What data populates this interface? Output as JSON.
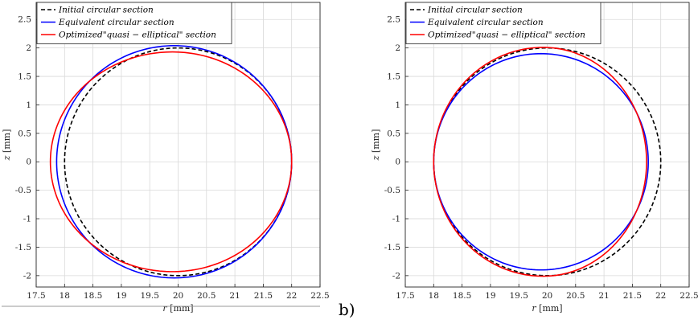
{
  "panel_labels": [
    "",
    "b)"
  ],
  "chart_data": [
    {
      "type": "line",
      "title": "",
      "xlabel": "r [mm]",
      "xlabel_var": "r",
      "xlabel_unit": "[mm]",
      "ylabel": "z [mm]",
      "ylabel_var": "z",
      "ylabel_unit": "[mm]",
      "xlim": [
        17.5,
        22.5
      ],
      "ylim": [
        -2.2,
        2.8
      ],
      "xticks": [
        17.5,
        18,
        18.5,
        19,
        19.5,
        20,
        20.5,
        21,
        21.5,
        22,
        22.5
      ],
      "yticks": [
        -2,
        -1.5,
        -1,
        -0.5,
        0,
        0.5,
        1,
        1.5,
        2,
        2.5
      ],
      "grid": true,
      "legend_position": "top-left",
      "series": [
        {
          "name": "Initial circular section",
          "color": "#000000",
          "dash": "dashed",
          "shape": {
            "center": [
              20,
              0
            ],
            "r_min": 18,
            "r_max": 22,
            "z_max": 2.0,
            "z_min": -2.0
          }
        },
        {
          "name": "Equivalent circular section",
          "color": "#0000ff",
          "dash": "solid",
          "shape": {
            "center": [
              19.93,
              0
            ],
            "r_min": 17.86,
            "r_max": 22,
            "z_max": 2.04,
            "z_min": -2.04
          }
        },
        {
          "name": "Optimized\"quasi − elliptical\" section",
          "color": "#ff0000",
          "dash": "solid",
          "shape": {
            "center": [
              19.9,
              0
            ],
            "r_min": 17.75,
            "r_max": 22,
            "z_max": 1.93,
            "z_min": -1.93
          }
        }
      ]
    },
    {
      "type": "line",
      "title": "",
      "xlabel": "r [mm]",
      "xlabel_var": "r",
      "xlabel_unit": "[mm]",
      "ylabel": "z [mm]",
      "ylabel_var": "z",
      "ylabel_unit": "[mm]",
      "xlim": [
        17.5,
        22.5
      ],
      "ylim": [
        -2.2,
        2.8
      ],
      "xticks": [
        17.5,
        18,
        18.5,
        19,
        19.5,
        20,
        20.5,
        21,
        21.5,
        22,
        22.5
      ],
      "yticks": [
        -2,
        -1.5,
        -1,
        -0.5,
        0,
        0.5,
        1,
        1.5,
        2,
        2.5
      ],
      "grid": true,
      "legend_position": "top-left",
      "series": [
        {
          "name": "Initial circular section",
          "color": "#000000",
          "dash": "dashed",
          "shape": {
            "center": [
              20,
              0
            ],
            "r_min": 18,
            "r_max": 22,
            "z_max": 2.0,
            "z_min": -2.0
          }
        },
        {
          "name": "Equivalent circular section",
          "color": "#0000ff",
          "dash": "solid",
          "shape": {
            "center": [
              19.89,
              0
            ],
            "r_min": 18,
            "r_max": 21.78,
            "z_max": 1.9,
            "z_min": -1.9
          }
        },
        {
          "name": "Optimized\"quasi − elliptical\" section",
          "color": "#ff0000",
          "dash": "solid",
          "shape": {
            "center": [
              19.93,
              0
            ],
            "r_min": 18,
            "r_max": 21.75,
            "z_max": 2.01,
            "z_min": -2.01
          }
        }
      ]
    }
  ]
}
